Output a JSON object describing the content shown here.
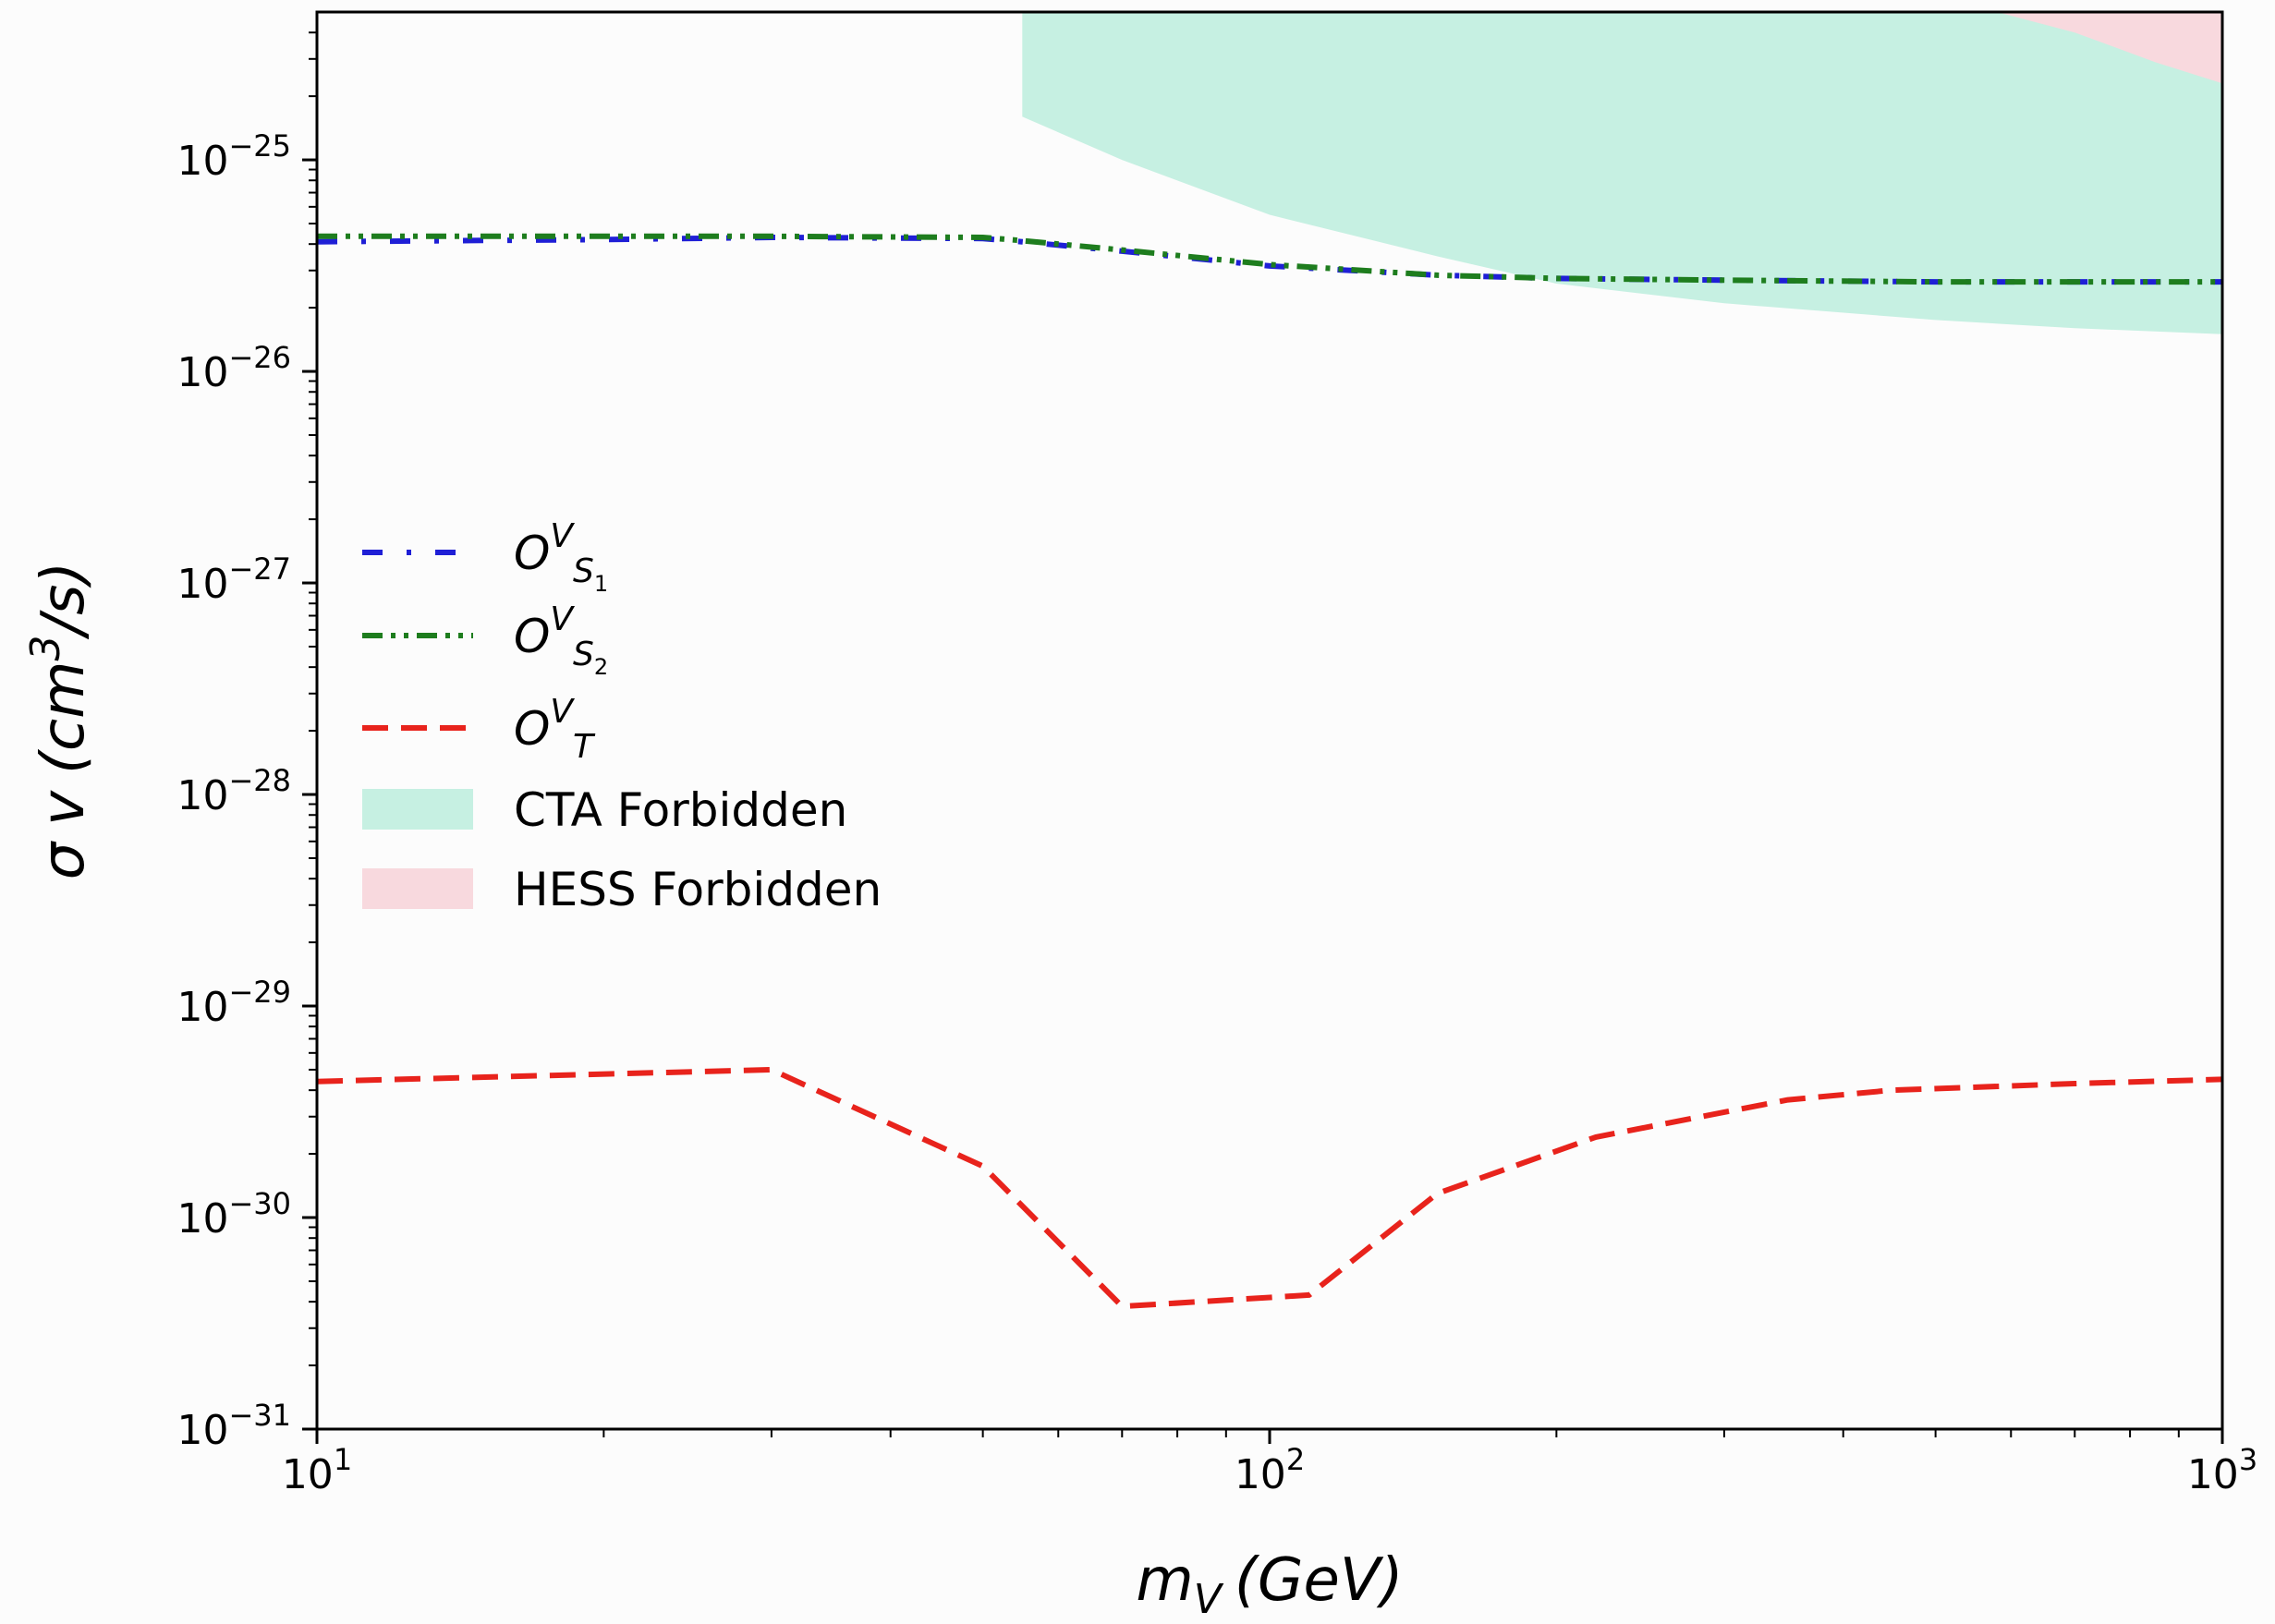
{
  "chart_data": {
    "type": "line",
    "xscale": "log",
    "yscale": "log",
    "xlim": [
      10,
      1000
    ],
    "ylim": [
      1e-31,
      5e-25
    ],
    "xlabel": {
      "main": "m",
      "sub": "V",
      "unit": "(GeV)"
    },
    "ylabel": {
      "sigma": "σ",
      "v": "v",
      "open": "(cm",
      "sup": "3",
      "close": "/s)"
    },
    "x_ticks": [
      {
        "value": 10,
        "base": "10",
        "exp": "1"
      },
      {
        "value": 100,
        "base": "10",
        "exp": "2"
      },
      {
        "value": 1000,
        "base": "10",
        "exp": "3"
      }
    ],
    "y_ticks": [
      {
        "value": 1e-31,
        "base": "10",
        "exp": "−31"
      },
      {
        "value": 1e-30,
        "base": "10",
        "exp": "−30"
      },
      {
        "value": 1e-29,
        "base": "10",
        "exp": "−29"
      },
      {
        "value": 1e-28,
        "base": "10",
        "exp": "−28"
      },
      {
        "value": 1e-27,
        "base": "10",
        "exp": "−27"
      },
      {
        "value": 1e-26,
        "base": "10",
        "exp": "−26"
      },
      {
        "value": 1e-25,
        "base": "10",
        "exp": "−25"
      }
    ],
    "series": [
      {
        "key": "S1",
        "label": {
          "base": "O",
          "sup": "V",
          "sub": "S",
          "subsub": "1"
        },
        "color": "#1f1fd6",
        "style": "dashdot-sparse",
        "x": [
          10,
          20,
          30,
          50,
          55,
          70,
          100,
          150,
          200,
          300,
          500,
          700,
          1000
        ],
        "y": [
          4.1e-26,
          4.2e-26,
          4.3e-26,
          4.25e-26,
          4.1e-26,
          3.7e-26,
          3.15e-26,
          2.85e-26,
          2.75e-26,
          2.7e-26,
          2.65e-26,
          2.65e-26,
          2.65e-26
        ]
      },
      {
        "key": "S2",
        "label": {
          "base": "O",
          "sup": "V",
          "sub": "S",
          "subsub": "2"
        },
        "color": "#1e7d1e",
        "style": "dashdotdot",
        "x": [
          10,
          20,
          30,
          50,
          55,
          70,
          100,
          150,
          200,
          300,
          500,
          700,
          1000
        ],
        "y": [
          4.35e-26,
          4.35e-26,
          4.35e-26,
          4.3e-26,
          4.15e-26,
          3.75e-26,
          3.2e-26,
          2.85e-26,
          2.75e-26,
          2.7e-26,
          2.65e-26,
          2.65e-26,
          2.65e-26
        ]
      },
      {
        "key": "T",
        "label": {
          "base": "O",
          "sup": "V",
          "sub": "T",
          "subsub": ""
        },
        "color": "#e8231c",
        "style": "dashed",
        "x": [
          10,
          30,
          50,
          70,
          110,
          150,
          220,
          350,
          450,
          700,
          1000
        ],
        "y": [
          4.4e-30,
          5e-30,
          1.75e-30,
          3.8e-31,
          4.3e-31,
          1.3e-30,
          2.4e-30,
          3.6e-30,
          4e-30,
          4.3e-30,
          4.5e-30
        ]
      }
    ],
    "regions": [
      {
        "key": "CTA",
        "label": "CTA Forbidden",
        "color": "#c6f0e2",
        "x": [
          55,
          70,
          100,
          150,
          200,
          300,
          500,
          700,
          1000
        ],
        "y_lower": [
          1.6e-25,
          1e-25,
          5.5e-26,
          3.5e-26,
          2.6e-26,
          2.1e-26,
          1.75e-26,
          1.6e-26,
          1.5e-26
        ]
      },
      {
        "key": "HESS",
        "label": "HESS Forbidden",
        "color": "#f8d9de",
        "x": [
          580,
          700,
          850,
          1000
        ],
        "y_lower": [
          5e-25,
          4e-25,
          2.9e-25,
          2.3e-25
        ]
      }
    ],
    "legend_position": "center-left"
  }
}
